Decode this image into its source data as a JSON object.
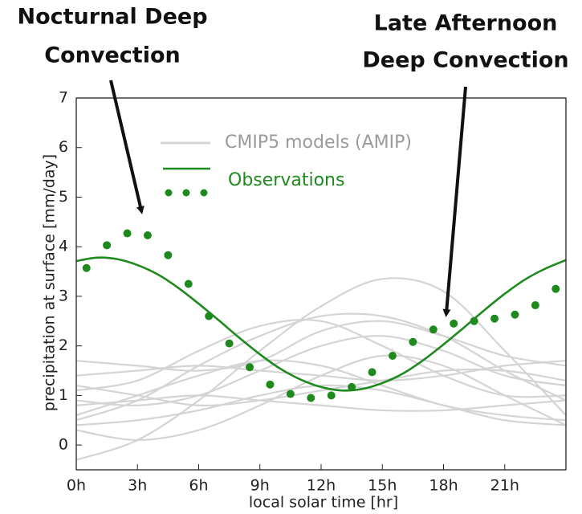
{
  "chart_data": {
    "type": "line",
    "annotations": [
      [
        "Nocturnal Deep",
        "Convection"
      ],
      [
        "Late Afternoon",
        "Deep Convection"
      ]
    ],
    "xlabel": "local solar time [hr]",
    "ylabel": "precipitation at surface [mm/day]",
    "xlim": [
      0,
      24
    ],
    "ylim": [
      -0.5,
      7
    ],
    "xticks": [
      {
        "value": 0,
        "label": "0h"
      },
      {
        "value": 3,
        "label": "3h"
      },
      {
        "value": 6,
        "label": "6h"
      },
      {
        "value": 9,
        "label": "9h"
      },
      {
        "value": 12,
        "label": "12h"
      },
      {
        "value": 15,
        "label": "15h"
      },
      {
        "value": 18,
        "label": "18h"
      },
      {
        "value": 21,
        "label": "21h"
      }
    ],
    "yticks": [
      0,
      1,
      2,
      3,
      4,
      5,
      6,
      7
    ],
    "models": {
      "name": "CMIP5 models (AMIP)",
      "color": "#d4d4d4",
      "x": [
        0,
        3,
        6,
        9,
        12,
        15,
        18,
        21,
        24
      ],
      "lines": [
        [
          -0.3,
          0.1,
          0.9,
          1.9,
          2.8,
          3.35,
          3.1,
          1.9,
          0.6
        ],
        [
          0.5,
          0.9,
          1.6,
          2.2,
          2.6,
          2.6,
          2.2,
          1.5,
          0.9
        ],
        [
          1.7,
          1.6,
          1.5,
          1.7,
          2.3,
          2.5,
          2.2,
          1.8,
          1.6
        ],
        [
          1.1,
          1.3,
          1.9,
          2.4,
          2.5,
          2.0,
          1.4,
          1.0,
          1.0
        ],
        [
          0.9,
          0.8,
          1.0,
          1.5,
          2.0,
          2.2,
          1.9,
          1.4,
          1.2
        ],
        [
          1.4,
          1.5,
          1.6,
          1.5,
          1.4,
          1.3,
          1.4,
          1.6,
          1.7
        ],
        [
          0.8,
          0.9,
          1.0,
          0.9,
          0.8,
          0.7,
          0.7,
          0.8,
          0.9
        ],
        [
          0.4,
          0.5,
          0.7,
          1.0,
          1.2,
          1.1,
          0.8,
          0.5,
          0.4
        ],
        [
          0.3,
          0.1,
          0.3,
          0.8,
          1.4,
          1.8,
          1.6,
          1.0,
          0.4
        ],
        [
          1.2,
          1.0,
          0.8,
          0.9,
          1.1,
          1.3,
          1.5,
          1.5,
          1.3
        ],
        [
          0.6,
          1.0,
          1.4,
          1.7,
          1.6,
          1.2,
          0.8,
          0.6,
          0.5
        ]
      ]
    },
    "observations": {
      "name": "Observations",
      "color": "#1e8a1e",
      "x": [
        0,
        1,
        2,
        3,
        4,
        5,
        6,
        7,
        8,
        9,
        10,
        11,
        12,
        13,
        14,
        15,
        16,
        17,
        18,
        19,
        20,
        21,
        22,
        23,
        24
      ],
      "values": [
        3.71,
        3.78,
        3.75,
        3.63,
        3.44,
        3.17,
        2.85,
        2.51,
        2.16,
        1.83,
        1.54,
        1.32,
        1.17,
        1.1,
        1.13,
        1.25,
        1.44,
        1.71,
        2.03,
        2.37,
        2.72,
        3.05,
        3.34,
        3.56,
        3.73
      ],
      "points_x": [
        0.5,
        1.5,
        2.5,
        3.5,
        4.5,
        5.5,
        6.5,
        7.5,
        8.5,
        9.5,
        10.5,
        11.5,
        12.5,
        13.5,
        14.5,
        15.5,
        16.5,
        17.5,
        18.5,
        19.5,
        20.5,
        21.5,
        22.5,
        23.5
      ],
      "points": [
        3.57,
        4.03,
        4.27,
        4.23,
        3.83,
        3.25,
        2.6,
        2.05,
        1.57,
        1.22,
        1.03,
        0.95,
        1.0,
        1.17,
        1.47,
        1.8,
        2.08,
        2.33,
        2.45,
        2.5,
        2.55,
        2.63,
        2.82,
        3.15
      ]
    }
  }
}
